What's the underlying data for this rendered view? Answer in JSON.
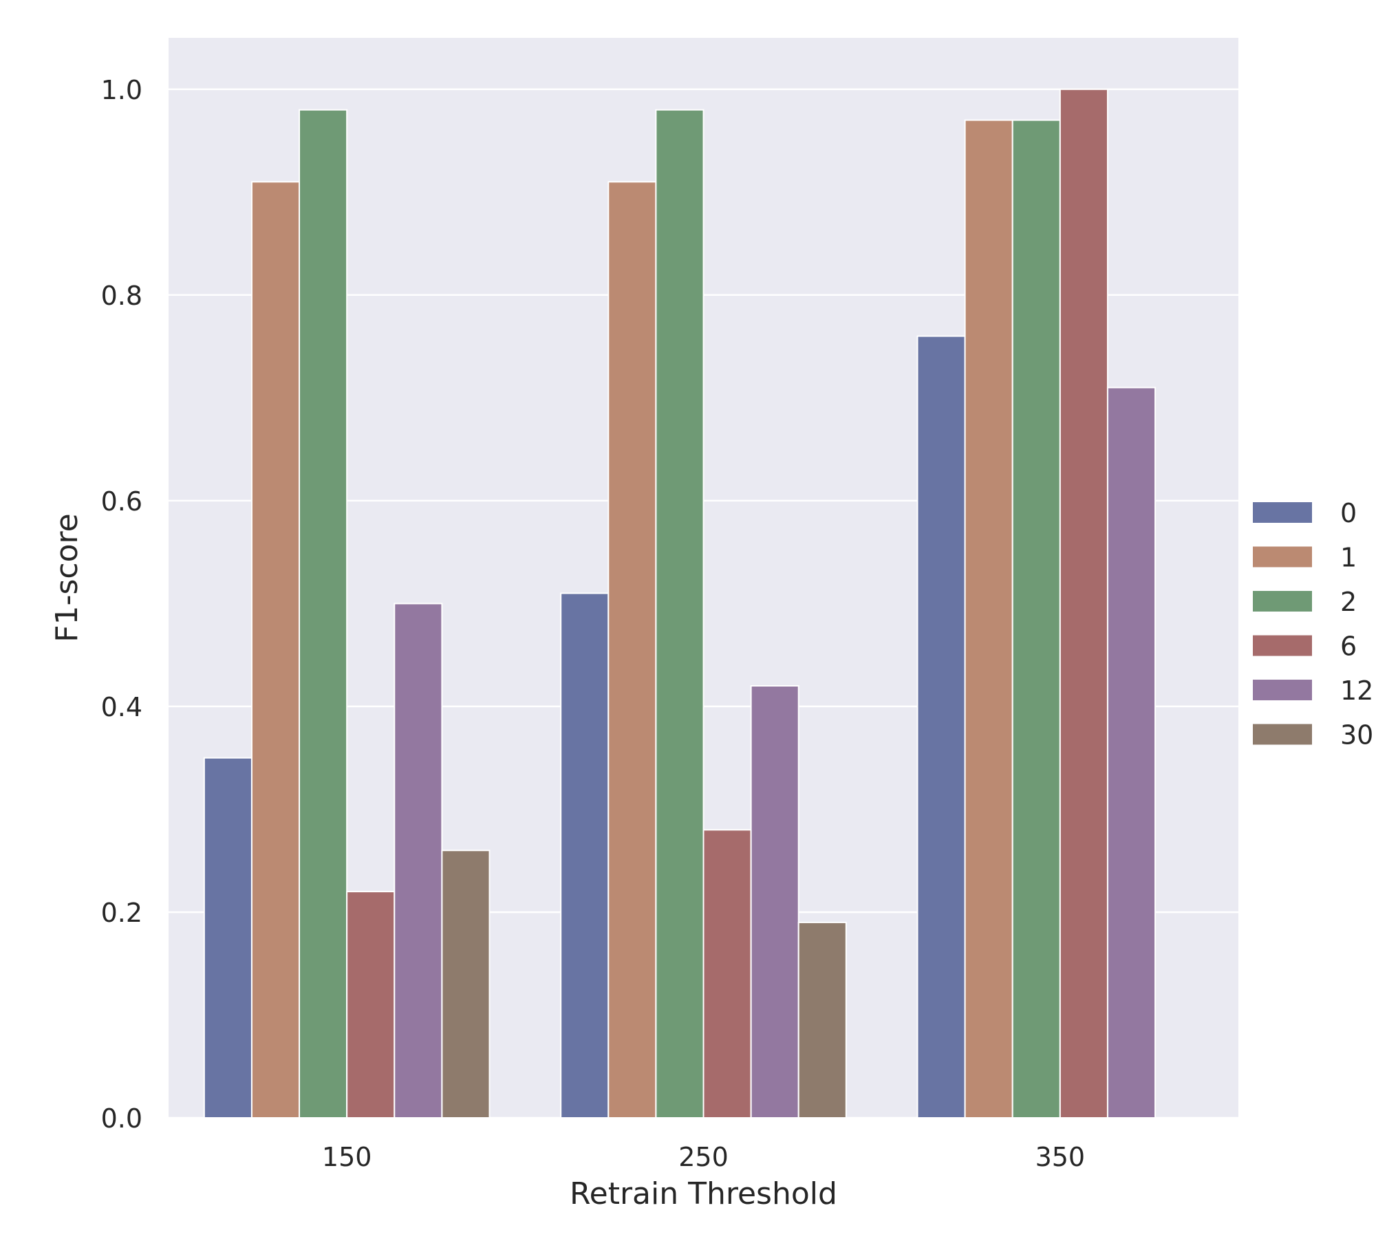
{
  "chart_data": {
    "type": "bar",
    "title": "",
    "xlabel": "Retrain Threshold",
    "ylabel": "F1-score",
    "categories": [
      "150",
      "250",
      "350"
    ],
    "ylim": [
      0,
      1.05
    ],
    "yticks": [
      "0.0",
      "0.2",
      "0.4",
      "0.6",
      "0.8",
      "1.0"
    ],
    "grid": true,
    "legend_position": "right",
    "series": [
      {
        "name": "0",
        "color": "#6874a3",
        "values": [
          0.35,
          0.51,
          0.76
        ]
      },
      {
        "name": "1",
        "color": "#bb8a72",
        "values": [
          0.91,
          0.91,
          0.97
        ]
      },
      {
        "name": "2",
        "color": "#6f9a75",
        "values": [
          0.98,
          0.98,
          0.97
        ]
      },
      {
        "name": "6",
        "color": "#a66b6b",
        "values": [
          0.22,
          0.28,
          1.0
        ]
      },
      {
        "name": "12",
        "color": "#9378a0",
        "values": [
          0.5,
          0.42,
          0.71
        ]
      },
      {
        "name": "30",
        "color": "#8e7b6c",
        "values": [
          0.26,
          0.19,
          null
        ]
      }
    ],
    "background_color": "#eaeaf2",
    "grid_color": "#ffffff"
  }
}
